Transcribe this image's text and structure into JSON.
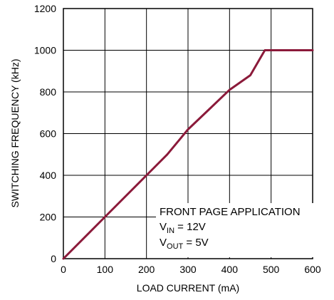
{
  "chart_data": {
    "type": "line",
    "xlabel": "LOAD CURRENT (mA)",
    "ylabel": "SWITCHING FREQUENCY (kHz)",
    "xlim": [
      0,
      600
    ],
    "ylim": [
      0,
      1200
    ],
    "xticks": [
      "0",
      "100",
      "200",
      "300",
      "400",
      "500",
      "600"
    ],
    "yticks": [
      "0",
      "200",
      "400",
      "600",
      "800",
      "1000",
      "1200"
    ],
    "grid": true,
    "annotation": {
      "line1": "FRONT PAGE APPLICATION",
      "line2_main": "V",
      "line2_sub": "IN",
      "line2_rest": " = 12V",
      "line3_main": "V",
      "line3_sub": "OUT",
      "line3_rest": " = 5V"
    },
    "series": [
      {
        "color": "#8b1a3a",
        "x": [
          0,
          100,
          200,
          250,
          300,
          350,
          400,
          450,
          485,
          600
        ],
        "y": [
          0,
          200,
          400,
          500,
          620,
          715,
          810,
          880,
          1000,
          1000
        ]
      }
    ]
  }
}
